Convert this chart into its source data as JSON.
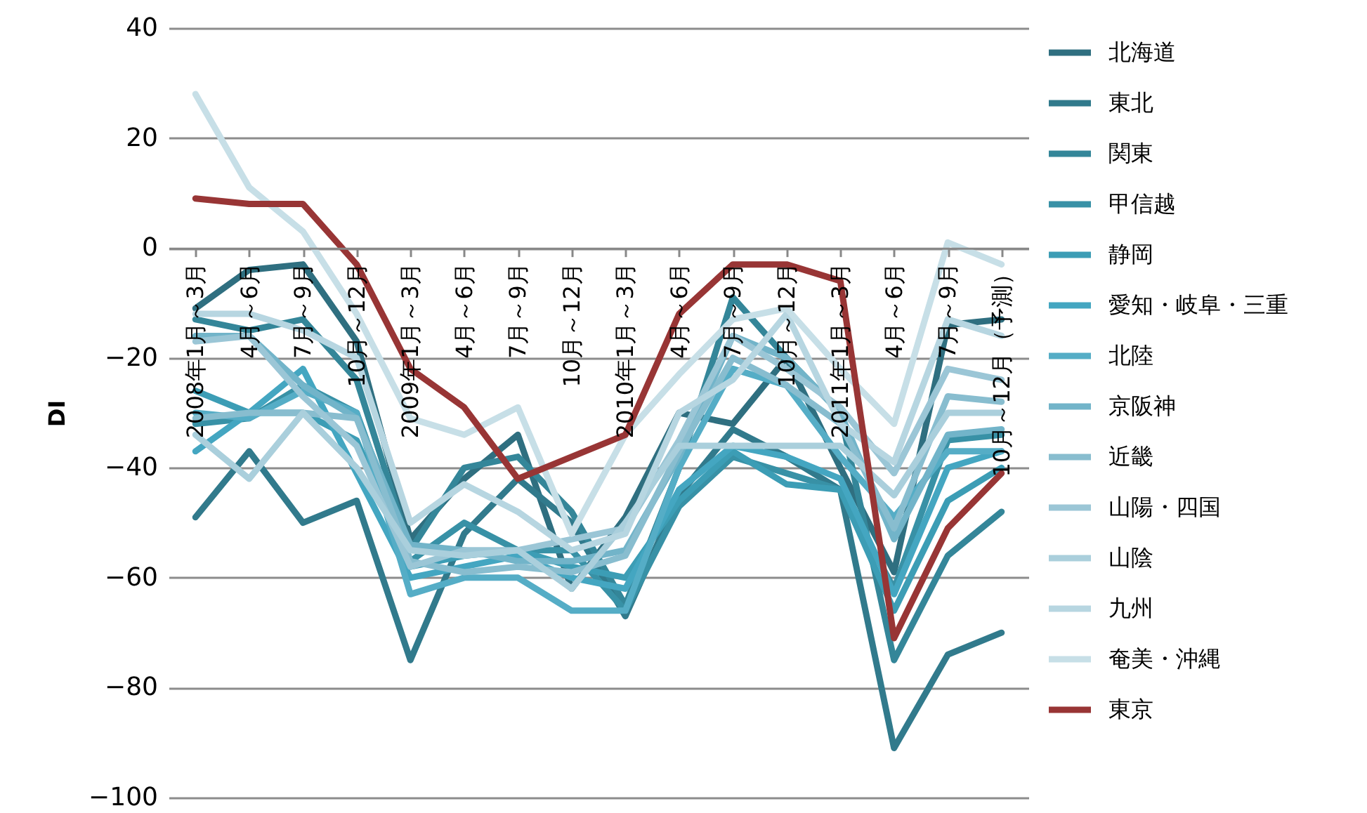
{
  "chart_data": {
    "type": "line",
    "ylabel": "DI",
    "categories": [
      "2008年1月～3月",
      "4月～6月",
      "7月～9月",
      "10月～12月",
      "2009年1月～3月",
      "4月～6月",
      "7月～9月",
      "10月～12月",
      "2010年1月～3月",
      "4月～6月",
      "7月～9月",
      "10月～12月",
      "2011年1月～3月",
      "4月～6月",
      "7月～9月",
      "10月～12月（予測）"
    ],
    "ylim": [
      -100,
      40
    ],
    "yticks": [
      -100,
      -80,
      -60,
      -40,
      -20,
      0,
      20,
      40
    ],
    "grid": "y",
    "legend": "right",
    "line_style": "solid",
    "marker": "none",
    "series": [
      {
        "name": "北海道",
        "color": "#2f6f80",
        "values": [
          -11,
          -4,
          -3,
          -17,
          -53,
          -42,
          -34,
          -62,
          -49,
          -30,
          -32,
          -20,
          -40,
          -59,
          -14,
          -13
        ]
      },
      {
        "name": "東北",
        "color": "#317a8c",
        "values": [
          -49,
          -37,
          -50,
          -46,
          -75,
          -52,
          -42,
          -50,
          -67,
          -45,
          -33,
          -38,
          -44,
          -91,
          -74,
          -70
        ]
      },
      {
        "name": "関東",
        "color": "#348699",
        "values": [
          -13,
          -15,
          -13,
          -24,
          -55,
          -40,
          -38,
          -48,
          -65,
          -40,
          -9,
          -20,
          -30,
          -75,
          -56,
          -48
        ]
      },
      {
        "name": "甲信越",
        "color": "#3891a6",
        "values": [
          -32,
          -31,
          -25,
          -30,
          -57,
          -50,
          -55,
          -55,
          -66,
          -47,
          -38,
          -41,
          -44,
          -62,
          -35,
          -34
        ]
      },
      {
        "name": "静岡",
        "color": "#3c9db5",
        "values": [
          -26,
          -30,
          -30,
          -35,
          -58,
          -56,
          -55,
          -58,
          -60,
          -46,
          -37,
          -43,
          -44,
          -66,
          -46,
          -40
        ]
      },
      {
        "name": "愛知・岐阜・三重",
        "color": "#44a6c1",
        "values": [
          -37,
          -30,
          -22,
          -41,
          -60,
          -58,
          -56,
          -60,
          -62,
          -44,
          -36,
          -38,
          -42,
          -63,
          -40,
          -37
        ]
      },
      {
        "name": "北陸",
        "color": "#55adc6",
        "values": [
          -30,
          -31,
          -26,
          -30,
          -63,
          -60,
          -60,
          -66,
          -66,
          -40,
          -22,
          -25,
          -38,
          -49,
          -37,
          -37
        ]
      },
      {
        "name": "京阪神",
        "color": "#72b4c9",
        "values": [
          -16,
          -16,
          -25,
          -31,
          -54,
          -55,
          -57,
          -57,
          -55,
          -38,
          -16,
          -20,
          -30,
          -53,
          -34,
          -33
        ]
      },
      {
        "name": "近畿",
        "color": "#88bdcf",
        "values": [
          -31,
          -30,
          -30,
          -31,
          -57,
          -59,
          -58,
          -59,
          -56,
          -37,
          -20,
          -25,
          -32,
          -51,
          -27,
          -28
        ]
      },
      {
        "name": "山陽・四国",
        "color": "#9bc6d6",
        "values": [
          -17,
          -16,
          -27,
          -36,
          -58,
          -55,
          -55,
          -53,
          -51,
          -35,
          -16,
          -22,
          -29,
          -41,
          -22,
          -24
        ]
      },
      {
        "name": "山陰",
        "color": "#aacfdc",
        "values": [
          -34,
          -42,
          -30,
          -40,
          -55,
          -56,
          -55,
          -62,
          -50,
          -36,
          -36,
          -36,
          -36,
          -45,
          -30,
          -30
        ]
      },
      {
        "name": "九州",
        "color": "#b7d6e1",
        "values": [
          -12,
          -12,
          -15,
          -20,
          -50,
          -43,
          -48,
          -55,
          -52,
          -30,
          -24,
          -12,
          -32,
          -39,
          -13,
          -16
        ]
      },
      {
        "name": "奄美・沖縄",
        "color": "#c7dfe7",
        "values": [
          28,
          11,
          3,
          -12,
          -31,
          -34,
          -29,
          -52,
          -34,
          -23,
          -13,
          -11,
          -22,
          -32,
          1,
          -3
        ]
      },
      {
        "name": "東京",
        "color": "#983535",
        "values": [
          9,
          8,
          8,
          -3,
          -22,
          -29,
          -42,
          -38,
          -34,
          -12,
          -3,
          -3,
          -6,
          -71,
          -51,
          -41
        ]
      }
    ]
  }
}
